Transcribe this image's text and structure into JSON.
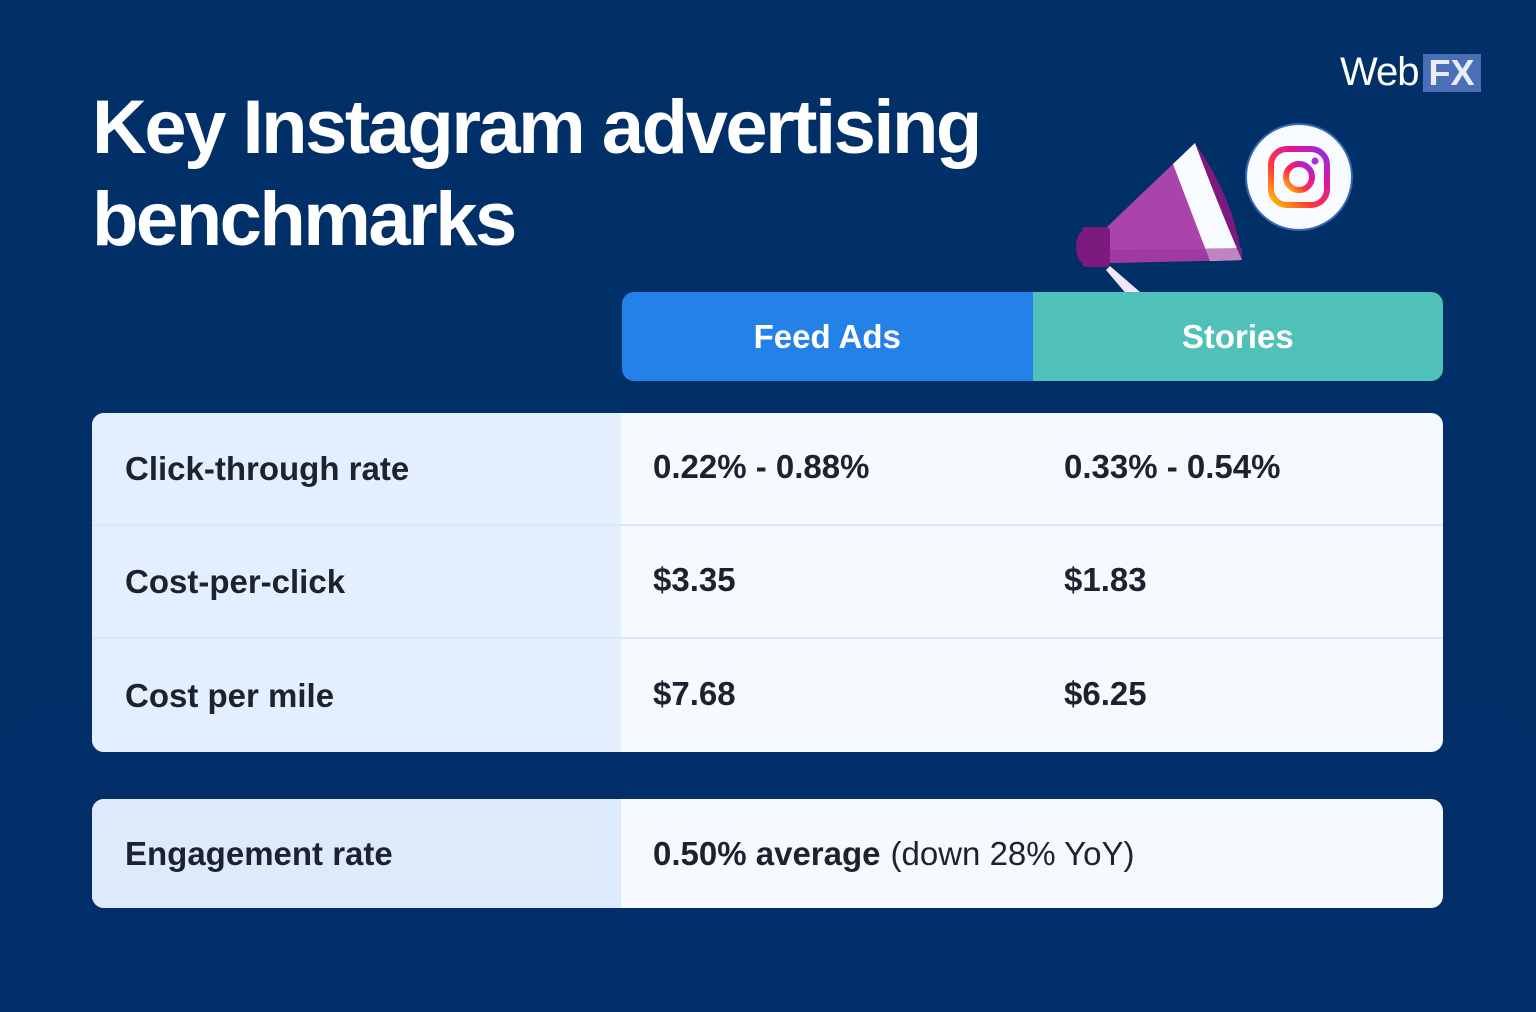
{
  "title_lines": [
    "Key Instagram advertising",
    "benchmarks"
  ],
  "logo": {
    "web": "Web",
    "fx": "FX"
  },
  "columns": [
    "Feed Ads",
    "Stories"
  ],
  "colors": {
    "background": "#013068",
    "feed_ads": "#2481e8",
    "stories": "#4fc1b8"
  },
  "rows": [
    {
      "label": "Click-through rate",
      "feed": "0.22% - 0.88%",
      "stories": "0.33% - 0.54%"
    },
    {
      "label": "Cost-per-click",
      "feed": "$3.35",
      "stories": "$1.83"
    },
    {
      "label": "Cost per mile",
      "feed": "$7.68",
      "stories": "$6.25"
    }
  ],
  "engagement": {
    "label": "Engagement rate",
    "value": "0.50% average",
    "note": "(down 28% YoY)"
  },
  "icons": [
    "megaphone-icon",
    "instagram-icon"
  ]
}
